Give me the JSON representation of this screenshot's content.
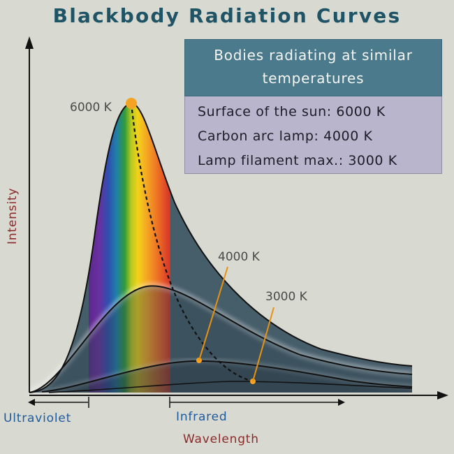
{
  "title": "Blackbody Radiation Curves",
  "legend": {
    "heading": "Bodies radiating at similar temperatures",
    "items": [
      "Surface of the sun: 6000 K",
      "Carbon arc lamp: 4000 K",
      "Lamp filament max.: 3000 K"
    ]
  },
  "curves": [
    {
      "label": "6000 K"
    },
    {
      "label": "4000 K"
    },
    {
      "label": "3000 K"
    }
  ],
  "axes": {
    "y_label": "Intensity",
    "x_label": "Wavelength",
    "region_left": "Ultraviolet",
    "region_right": "Infrared"
  },
  "colors": {
    "title": "#1f5466",
    "axis_label": "#8b2a2a",
    "region_label": "#1f5a9e",
    "pointer": "#e8920f",
    "legend_head": "#4b7a8c",
    "legend_body": "#b9b5cc",
    "curve_fill": "#3a5361"
  }
}
